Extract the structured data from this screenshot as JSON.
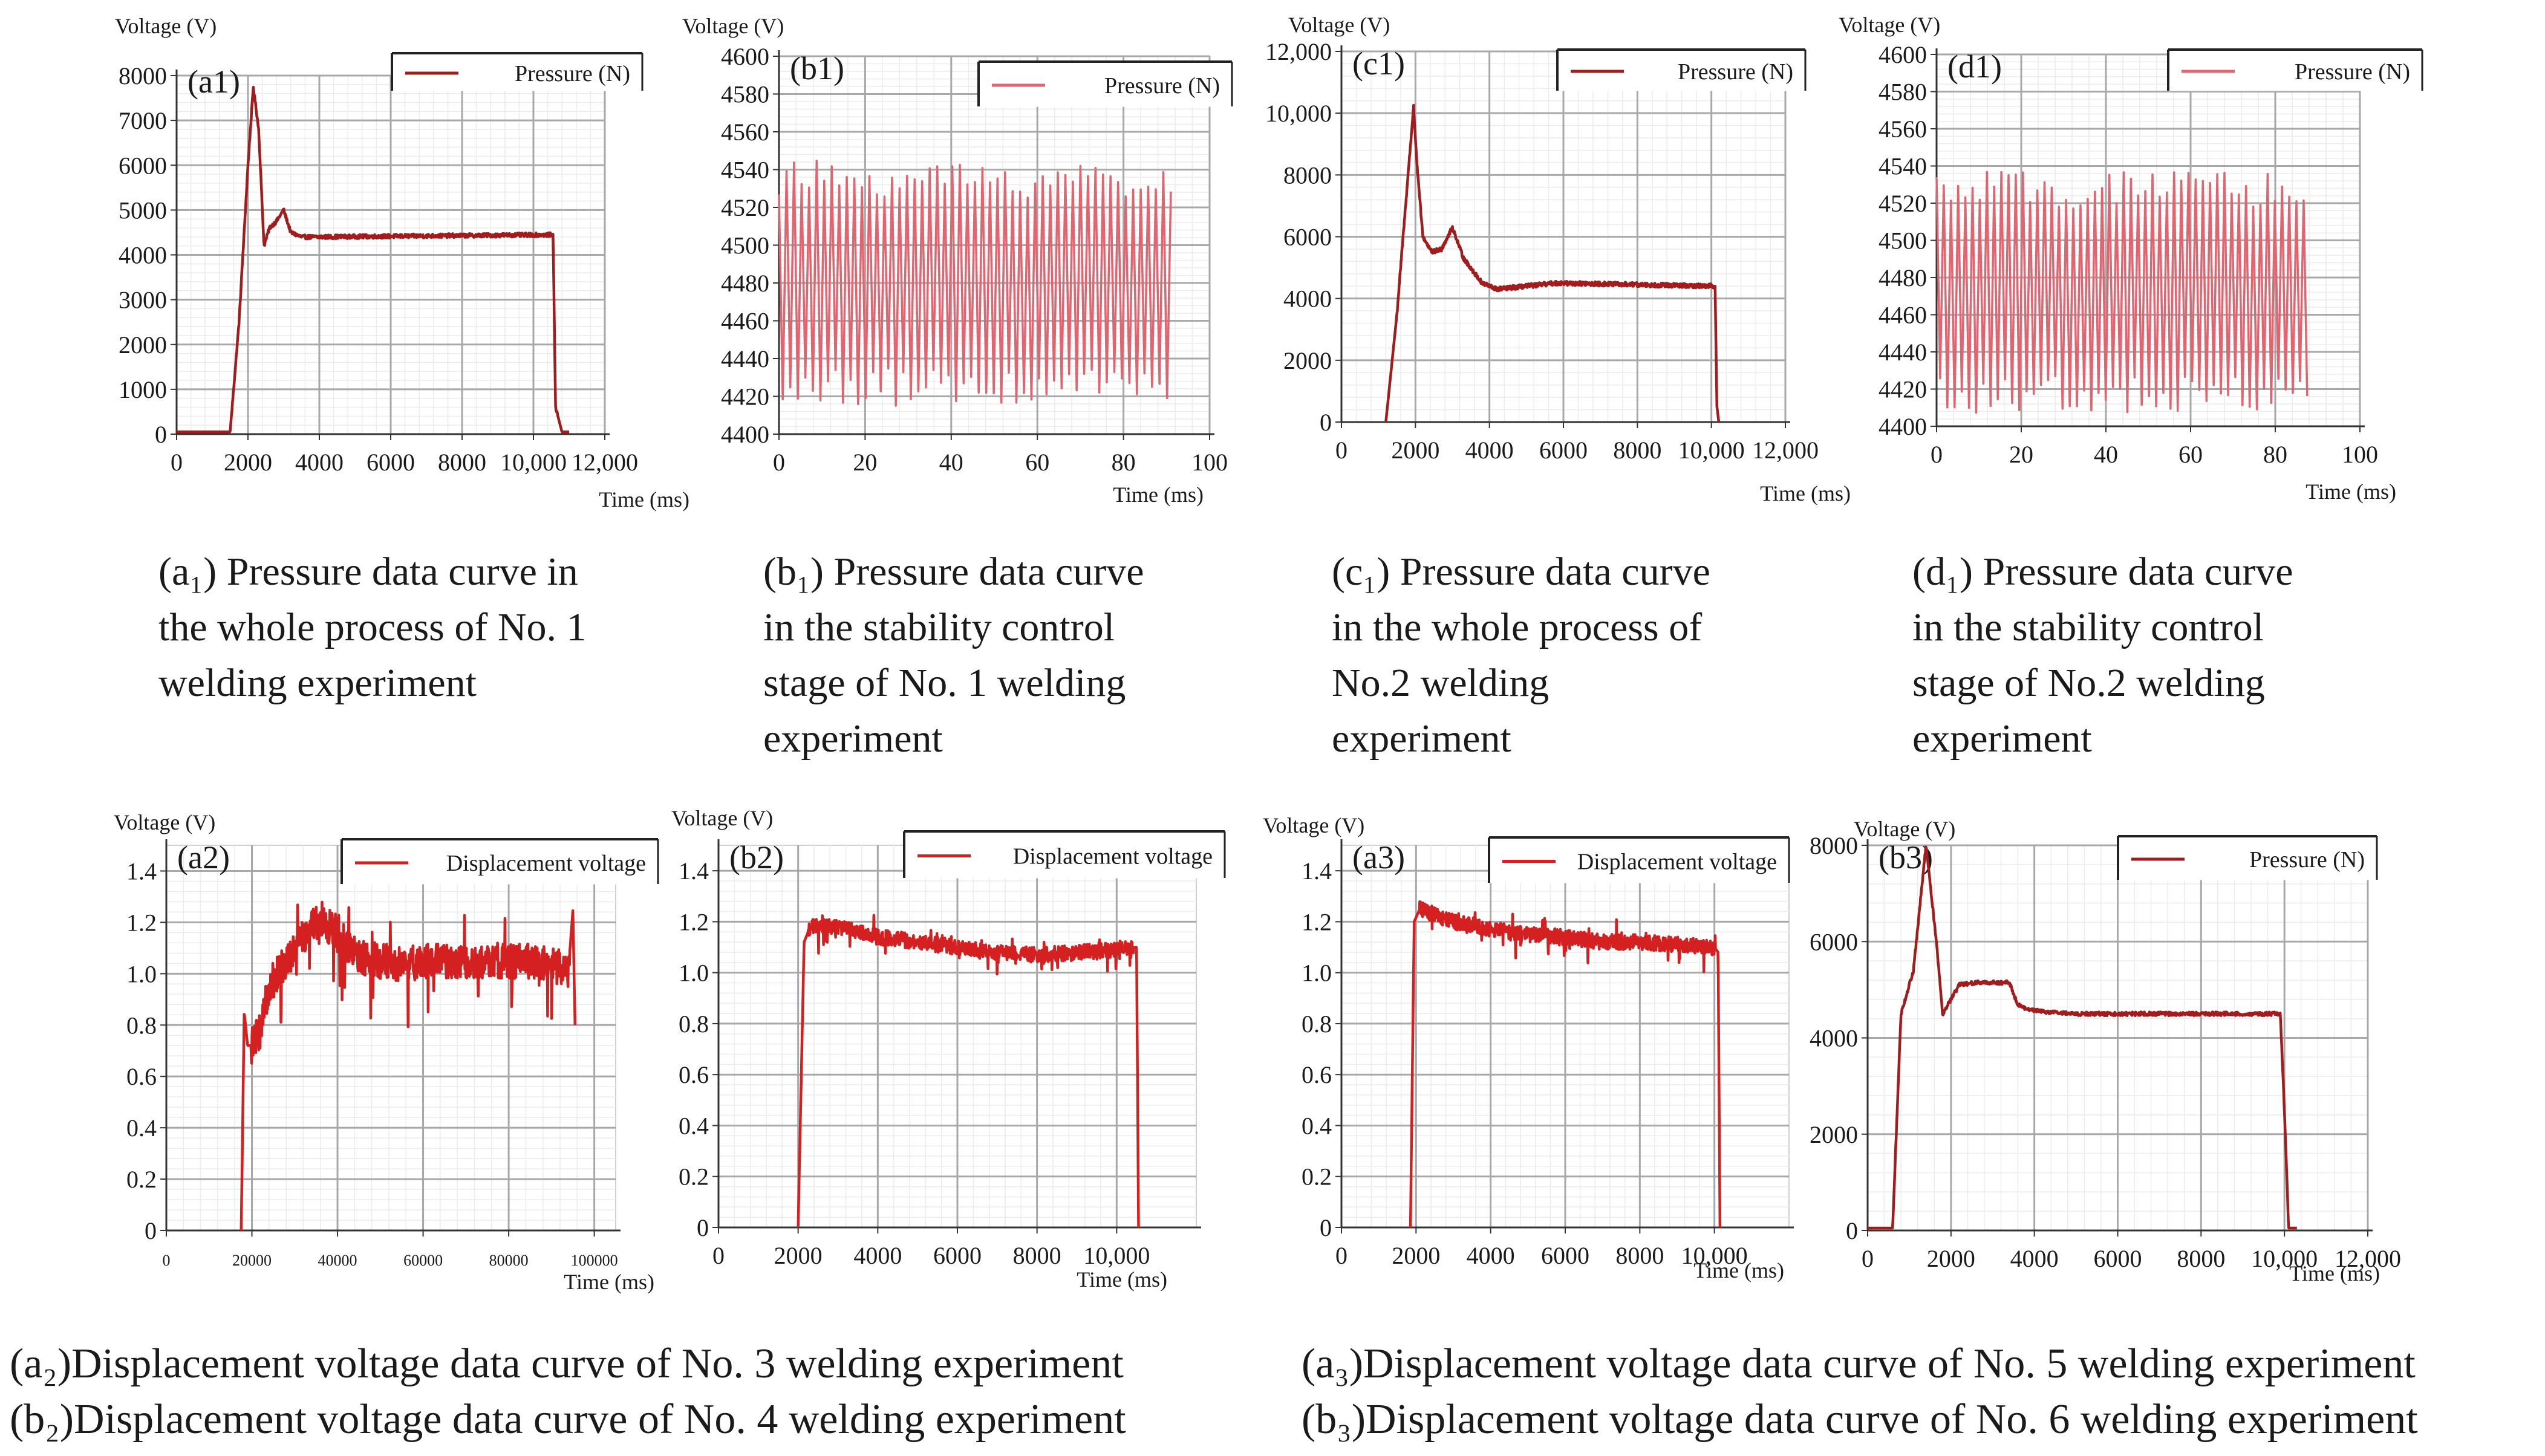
{
  "chart_data": [
    {
      "id": "a1",
      "type": "line",
      "panel_label": "(a1)",
      "ylabel": "Voltage (V)",
      "xlabel": "Time (ms)",
      "legend": "Pressure (N)",
      "xlim": [
        0,
        12000
      ],
      "ylim": [
        0,
        8000
      ],
      "xticks": [
        "0",
        "2000",
        "4000",
        "6000",
        "8000",
        "10,000",
        "12,000"
      ],
      "yticks": [
        "0",
        "1000",
        "2000",
        "3000",
        "4000",
        "5000",
        "6000",
        "7000",
        "8000"
      ],
      "series": [
        {
          "name": "Pressure (N)",
          "color": "#a01d1d",
          "model": "pressure_full",
          "x": [
            0,
            1500,
            1750,
            2000,
            2150,
            2300,
            2450,
            2600,
            2800,
            3000,
            3200,
            3500,
            4000,
            10550,
            10620,
            10800,
            11000
          ],
          "y": [
            50,
            50,
            2500,
            6000,
            7750,
            6800,
            4200,
            4600,
            4750,
            5000,
            4500,
            4400,
            4400,
            4450,
            600,
            50,
            50
          ]
        }
      ],
      "noise": 45
    },
    {
      "id": "b1",
      "type": "line",
      "panel_label": "(b1)",
      "ylabel": "Voltage (V)",
      "xlabel": "Time (ms)",
      "legend": "Pressure (N)",
      "xlim": [
        0,
        100
      ],
      "ylim": [
        4400,
        4600
      ],
      "xticks": [
        "0",
        "20",
        "40",
        "60",
        "80",
        "100"
      ],
      "yticks": [
        "4400",
        "4420",
        "4440",
        "4460",
        "4480",
        "4500",
        "4520",
        "4540",
        "4560",
        "4580",
        "4600"
      ],
      "series": [
        {
          "name": "Pressure (N)",
          "color": "#e06570",
          "model": "oscillation",
          "x_range": [
            0,
            91
          ],
          "period": 1.75,
          "center": 4480,
          "amplitude": 55,
          "amp_jitter": 10
        }
      ]
    },
    {
      "id": "c1",
      "type": "line",
      "panel_label": "(c1)",
      "ylabel": "Voltage (V)",
      "xlabel": "Time (ms)",
      "legend": "Pressure (N)",
      "xlim": [
        0,
        12000
      ],
      "ylim": [
        0,
        12000
      ],
      "xticks": [
        "0",
        "2000",
        "4000",
        "6000",
        "8000",
        "10,000",
        "12,000"
      ],
      "yticks": [
        "0",
        "2000",
        "4000",
        "6000",
        "8000",
        "10,000",
        "12,000"
      ],
      "series": [
        {
          "name": "Pressure (N)",
          "color": "#a01d1d",
          "model": "pressure_full",
          "x": [
            1200,
            1500,
            1800,
            1950,
            2050,
            2200,
            2450,
            2700,
            3000,
            3300,
            3800,
            4200,
            5000,
            5800,
            10100,
            10150,
            10200
          ],
          "y": [
            0,
            3500,
            8000,
            10200,
            8200,
            6000,
            5500,
            5600,
            6300,
            5300,
            4500,
            4300,
            4400,
            4500,
            4400,
            500,
            0
          ]
        }
      ],
      "noise": 70
    },
    {
      "id": "d1",
      "type": "line",
      "panel_label": "(d1)",
      "ylabel": "Voltage (V)",
      "xlabel": "Time (ms)",
      "legend": "Pressure (N)",
      "xlim": [
        0,
        100
      ],
      "ylim": [
        4400,
        4600
      ],
      "xticks": [
        "0",
        "20",
        "40",
        "60",
        "80",
        "100"
      ],
      "yticks": [
        "4400",
        "4420",
        "4440",
        "4460",
        "4480",
        "4500",
        "4520",
        "4540",
        "4560",
        "4580",
        "4600"
      ],
      "series": [
        {
          "name": "Pressure (N)",
          "color": "#e06570",
          "model": "oscillation",
          "x_range": [
            0,
            88
          ],
          "period": 1.7,
          "center": 4472,
          "amplitude": 55,
          "amp_jitter": 10
        }
      ]
    },
    {
      "id": "a2",
      "type": "line",
      "panel_label": "(a2)",
      "ylabel": "Voltage (V)",
      "xlabel": "Time (ms)",
      "legend": "Displacement voltage",
      "xlim": [
        0,
        105000
      ],
      "ylim": [
        0,
        1.5
      ],
      "xticks": [
        "0",
        "20000",
        "40000",
        "60000",
        "80000",
        "100000"
      ],
      "yticks": [
        "0",
        "0.2",
        "0.4",
        "0.6",
        "0.8",
        "1.0",
        "1.2",
        "1.4"
      ],
      "series": [
        {
          "name": "Displacement voltage",
          "color": "#d42020",
          "model": "displacement",
          "x": [
            17500,
            18200,
            19000,
            20000,
            22000,
            24000,
            28000,
            32000,
            36000,
            40000,
            45000,
            55000,
            65000,
            75000,
            85000,
            94000,
            95000,
            95500
          ],
          "y": [
            0,
            0.85,
            0.72,
            0.72,
            0.78,
            0.95,
            1.05,
            1.15,
            1.22,
            1.15,
            1.06,
            1.04,
            1.05,
            1.05,
            1.05,
            1.02,
            1.25,
            0.8
          ]
        }
      ],
      "noise": 0.07
    },
    {
      "id": "b2",
      "type": "line",
      "panel_label": "(b2)",
      "ylabel": "Voltage (V)",
      "xlabel": "Time (ms)",
      "legend": "Displacement voltage",
      "xlim": [
        0,
        12000
      ],
      "ylim": [
        0,
        1.5
      ],
      "xticks": [
        "0",
        "2000",
        "4000",
        "6000",
        "8000",
        "10,000"
      ],
      "yticks": [
        "0",
        "0.2",
        "0.4",
        "0.6",
        "0.8",
        "1.0",
        "1.2",
        "1.4"
      ],
      "series": [
        {
          "name": "Displacement voltage",
          "color": "#d42020",
          "model": "displacement",
          "x": [
            2000,
            2150,
            2300,
            3000,
            4000,
            5000,
            6000,
            7000,
            8000,
            9000,
            10000,
            10500,
            10550
          ],
          "y": [
            0,
            1.12,
            1.18,
            1.18,
            1.14,
            1.12,
            1.1,
            1.08,
            1.07,
            1.08,
            1.09,
            1.1,
            0
          ]
        }
      ],
      "noise": 0.03
    },
    {
      "id": "a3",
      "type": "line",
      "panel_label": "(a3)",
      "ylabel": "Voltage (V)",
      "xlabel": "Time (ms)",
      "legend": "Displacement voltage",
      "xlim": [
        0,
        12000
      ],
      "ylim": [
        0,
        1.5
      ],
      "xticks": [
        "0",
        "2000",
        "4000",
        "6000",
        "8000",
        "10,000"
      ],
      "yticks": [
        "0",
        "0.2",
        "0.4",
        "0.6",
        "0.8",
        "1.0",
        "1.2",
        "1.4"
      ],
      "series": [
        {
          "name": "Displacement voltage",
          "color": "#d42020",
          "model": "displacement",
          "x": [
            1850,
            1950,
            2100,
            3000,
            4000,
            5000,
            6000,
            7000,
            8000,
            9000,
            10000,
            10100,
            10150
          ],
          "y": [
            0,
            1.2,
            1.25,
            1.2,
            1.17,
            1.15,
            1.14,
            1.12,
            1.12,
            1.11,
            1.1,
            1.08,
            0
          ]
        }
      ],
      "noise": 0.03
    },
    {
      "id": "b3",
      "type": "line",
      "panel_label": "(b3)",
      "ylabel": "Voltage (V)",
      "xlabel": "Time (ms)",
      "legend": "Pressure (N)",
      "xlim": [
        0,
        12000
      ],
      "ylim": [
        0,
        8000
      ],
      "xticks": [
        "0",
        "2000",
        "4000",
        "6000",
        "8000",
        "10,000",
        "12,000"
      ],
      "yticks": [
        "0",
        "2000",
        "4000",
        "6000",
        "8000"
      ],
      "series": [
        {
          "name": "Pressure (N)",
          "color": "#a01d1d",
          "model": "pressure_full",
          "x": [
            0,
            600,
            800,
            1100,
            1400,
            1650,
            1800,
            2000,
            2200,
            2600,
            3400,
            3600,
            3800,
            4200,
            5000,
            9900,
            10000,
            10100,
            10300
          ],
          "y": [
            50,
            50,
            4500,
            5400,
            8000,
            6000,
            4500,
            4800,
            5100,
            5150,
            5150,
            4700,
            4600,
            4550,
            4500,
            4500,
            2500,
            50,
            50
          ]
        }
      ],
      "noise": 40
    }
  ],
  "captions": {
    "a1": [
      "(a₁) Pressure data curve in",
      "the whole process of No. 1",
      "welding  experiment"
    ],
    "b1": [
      "(b₁) Pressure data curve",
      "in the stability  control",
      "stage of No. 1 welding",
      "experiment"
    ],
    "c1": [
      "(c₁) Pressure data curve",
      "in the whole process of",
      "No.2 welding",
      "experiment"
    ],
    "d1": [
      "(d₁) Pressure data curve",
      "in the stability  control",
      "stage of No.2 welding",
      "experiment"
    ],
    "left_bottom": [
      "(a₂)Displacement  voltage data curve of No. 3 welding  experiment",
      "(b₂)Displacement  voltage data curve of No. 4 welding  experiment"
    ],
    "right_bottom": [
      "(a₃)Displacement voltage data curve of No. 5 welding  experiment",
      "(b₃)Displacement  voltage  data curve of No. 6 welding  experiment"
    ]
  }
}
